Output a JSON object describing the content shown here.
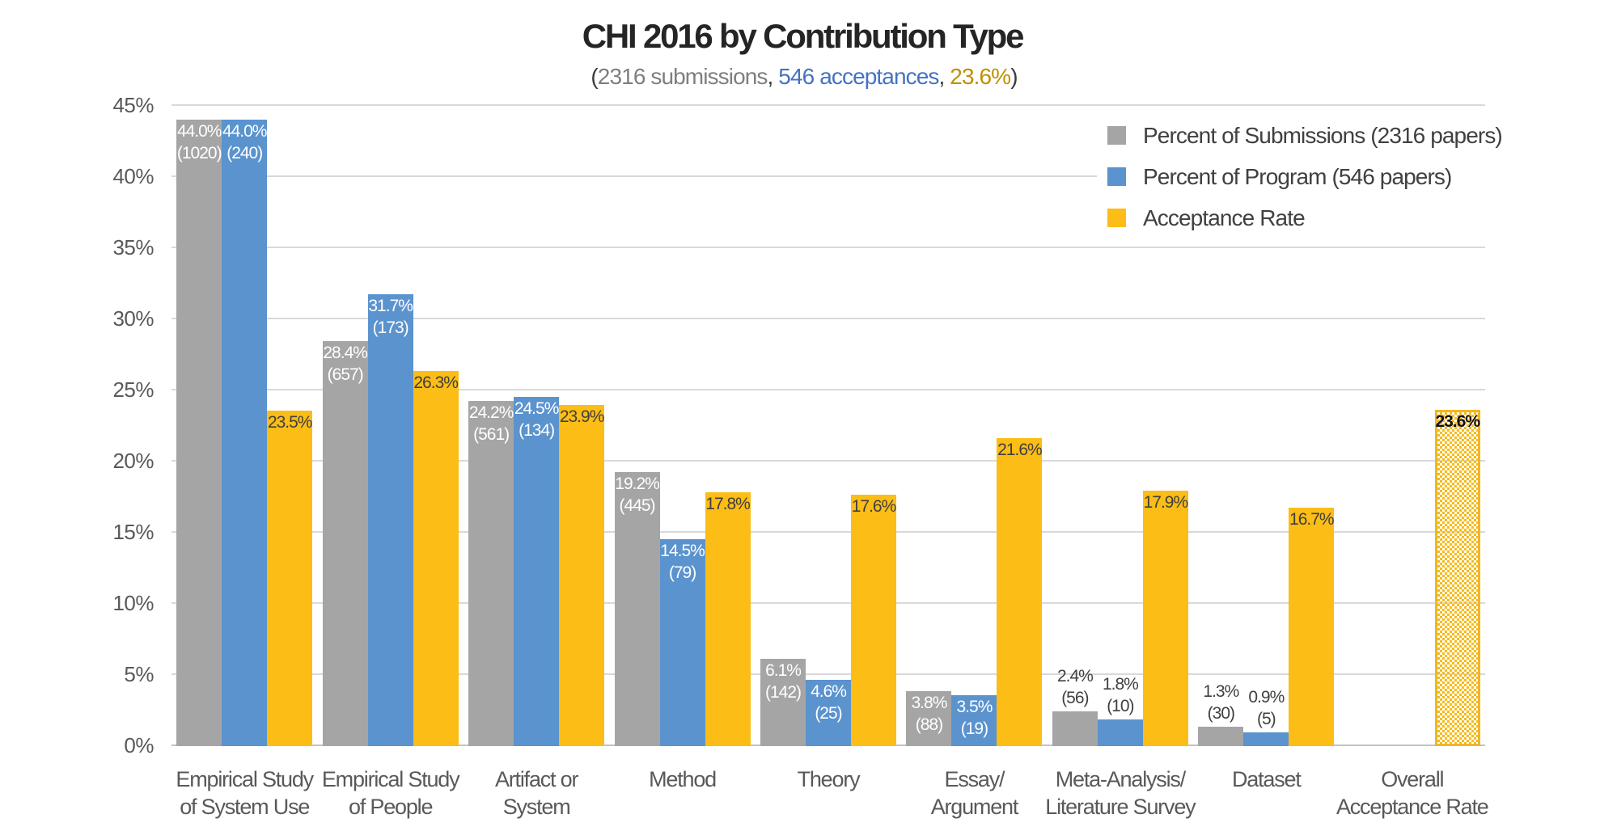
{
  "title": "CHI 2016 by Contribution Type",
  "subtitle": {
    "full_text": "(2316 submissions, 546 acceptances, 23.6%)",
    "parts": [
      {
        "text": "(",
        "color": "#3b3b3b"
      },
      {
        "text": "2316 submissions",
        "color": "#7f7f7f"
      },
      {
        "text": ", ",
        "color": "#3b3b3b"
      },
      {
        "text": "546 acceptances",
        "color": "#4472c4"
      },
      {
        "text": ", ",
        "color": "#3b3b3b"
      },
      {
        "text": "23.6%",
        "color": "#bf9000"
      },
      {
        "text": ")",
        "color": "#3b3b3b"
      }
    ]
  },
  "legend": {
    "position": "top-right",
    "items": [
      {
        "label": "Percent of Submissions (2316 papers)",
        "color": "#a5a5a5"
      },
      {
        "label": "Percent of Program (546 papers)",
        "color": "#5b93ce"
      },
      {
        "label": "Acceptance Rate",
        "color": "#fbbd16"
      }
    ]
  },
  "y_axis": {
    "tick_labels": [
      "0%",
      "5%",
      "10%",
      "15%",
      "20%",
      "25%",
      "30%",
      "35%",
      "40%",
      "45%"
    ]
  },
  "chart_data": {
    "type": "bar",
    "title": "CHI 2016 by Contribution Type",
    "subtitle": "(2316 submissions, 546 acceptances, 23.6%)",
    "xlabel": "",
    "ylabel": "",
    "ylim": [
      0,
      45
    ],
    "ytick_step": 5,
    "ytick_format": "percent",
    "grid": true,
    "legend_position": "top-right",
    "categories": [
      "Empirical Study of System Use",
      "Empirical Study of People",
      "Artifact or System",
      "Method",
      "Theory",
      "Essay/Argument",
      "Meta-Analysis/Literature Survey",
      "Dataset",
      "Overall Acceptance Rate"
    ],
    "category_label_lines": [
      [
        "Empirical Study",
        "of System Use"
      ],
      [
        "Empirical Study",
        "of People"
      ],
      [
        "Artifact or",
        "System"
      ],
      [
        "Method"
      ],
      [
        "Theory"
      ],
      [
        "Essay/",
        "Argument"
      ],
      [
        "Meta-Analysis/",
        "Literature Survey"
      ],
      [
        "Dataset"
      ],
      [
        "Overall",
        "Acceptance Rate"
      ]
    ],
    "series": [
      {
        "name": "Percent of Submissions (2316 papers)",
        "role": "submissions",
        "color": "#a5a5a5",
        "values": [
          44.0,
          28.4,
          24.2,
          19.2,
          6.1,
          3.8,
          2.4,
          1.3,
          null
        ],
        "counts": [
          1020,
          657,
          561,
          445,
          142,
          88,
          56,
          30,
          null
        ],
        "pct_labels": [
          "44.0%",
          "28.4%",
          "24.2%",
          "19.2%",
          "6.1%",
          "3.8%",
          "2.4%",
          "1.3%",
          null
        ],
        "count_labels": [
          "(1020)",
          "(657)",
          "(561)",
          "(445)",
          "(142)",
          "(88)",
          "(56)",
          "(30)",
          null
        ],
        "label_inside": [
          true,
          true,
          true,
          true,
          true,
          true,
          false,
          false,
          null
        ]
      },
      {
        "name": "Percent of Program (546 papers)",
        "role": "program",
        "color": "#5b93ce",
        "values": [
          44.0,
          31.7,
          24.5,
          14.5,
          4.6,
          3.5,
          1.8,
          0.9,
          null
        ],
        "counts": [
          240,
          173,
          134,
          79,
          25,
          19,
          10,
          5,
          null
        ],
        "pct_labels": [
          "44.0%",
          "31.7%",
          "24.5%",
          "14.5%",
          "4.6%",
          "3.5%",
          "1.8%",
          "0.9%",
          null
        ],
        "count_labels": [
          "(240)",
          "(173)",
          "(134)",
          "(79)",
          "(25)",
          "(19)",
          "(10)",
          "(5)",
          null
        ],
        "label_inside": [
          true,
          true,
          true,
          true,
          true,
          true,
          false,
          false,
          null
        ]
      },
      {
        "name": "Acceptance Rate",
        "role": "acceptance",
        "color": "#fbbd16",
        "values": [
          23.5,
          26.3,
          23.9,
          17.8,
          17.6,
          21.6,
          17.9,
          16.7,
          23.6
        ],
        "pct_labels": [
          "23.5%",
          "26.3%",
          "23.9%",
          "17.8%",
          "17.6%",
          "21.6%",
          "17.9%",
          "16.7%",
          "23.6%"
        ],
        "label_inside": [
          true,
          true,
          true,
          true,
          true,
          true,
          true,
          true,
          true
        ],
        "hatched": [
          false,
          false,
          false,
          false,
          false,
          false,
          false,
          false,
          true
        ],
        "emphasis": [
          false,
          false,
          false,
          false,
          false,
          false,
          false,
          false,
          true
        ]
      }
    ]
  }
}
